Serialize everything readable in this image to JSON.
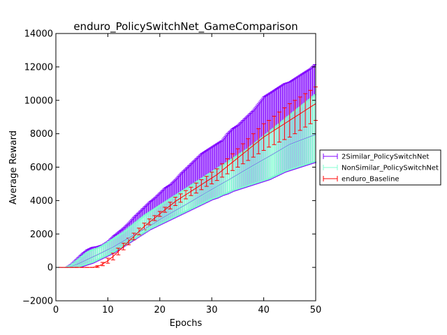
{
  "chart_data": {
    "type": "line",
    "title": "enduro_PolicySwitchNet_GameComparison",
    "xlabel": "Epochs",
    "ylabel": "Average Reward",
    "xlim": [
      0,
      50
    ],
    "ylim": [
      -2000,
      14000
    ],
    "xticks": [
      "0",
      "10",
      "20",
      "30",
      "40",
      "50"
    ],
    "yticks": [
      "−2000",
      "0",
      "2000",
      "4000",
      "6000",
      "8000",
      "10000",
      "12000",
      "14000"
    ],
    "grid": false,
    "legend_position": "outside-right",
    "x": [
      1,
      2,
      3,
      4,
      5,
      6,
      7,
      8,
      9,
      10,
      11,
      12,
      13,
      14,
      15,
      16,
      17,
      18,
      19,
      20,
      21,
      22,
      23,
      24,
      25,
      26,
      27,
      28,
      29,
      30,
      31,
      32,
      33,
      34,
      35,
      36,
      37,
      38,
      39,
      40,
      41,
      42,
      43,
      44,
      45,
      46,
      47,
      48,
      49,
      50
    ],
    "series": [
      {
        "name": "2Similar_PolicySwitchNet",
        "color": "#7f00ff",
        "values": [
          0,
          0,
          50,
          160,
          300,
          450,
          600,
          750,
          900,
          1050,
          1200,
          1380,
          1560,
          1740,
          1920,
          2100,
          2280,
          2460,
          2640,
          2850,
          3030,
          3210,
          3390,
          3570,
          3750,
          3930,
          4110,
          4290,
          4470,
          4650,
          4830,
          5010,
          5190,
          5370,
          5550,
          5730,
          5910,
          6090,
          6270,
          6450,
          6630,
          6810,
          6990,
          7170,
          7350,
          7470,
          7590,
          7710,
          7830,
          7950
        ],
        "lower": [
          0,
          0,
          0,
          0,
          50,
          150,
          250,
          400,
          550,
          700,
          850,
          1050,
          1250,
          1450,
          1650,
          1850,
          2050,
          2250,
          2400,
          2550,
          2700,
          2850,
          3000,
          3150,
          3300,
          3450,
          3600,
          3750,
          3900,
          4050,
          4150,
          4300,
          4400,
          4550,
          4650,
          4750,
          4850,
          4950,
          5050,
          5150,
          5250,
          5400,
          5550,
          5700,
          5800,
          5900,
          6000,
          6100,
          6200,
          6300
        ],
        "upper": [
          0,
          0,
          200,
          500,
          800,
          1050,
          1200,
          1250,
          1350,
          1550,
          1850,
          2100,
          2350,
          2650,
          3000,
          3300,
          3600,
          3900,
          4150,
          4450,
          4750,
          4950,
          5250,
          5600,
          5900,
          6200,
          6500,
          6800,
          7000,
          7200,
          7400,
          7600,
          8000,
          8300,
          8500,
          8800,
          9100,
          9400,
          9800,
          10200,
          10400,
          10600,
          10800,
          11000,
          11100,
          11300,
          11500,
          11700,
          11900,
          12200
        ]
      },
      {
        "name": "NonSimilar_PolicySwitchNet",
        "color": "#80ffd0",
        "values": [
          0,
          0,
          40,
          140,
          280,
          430,
          580,
          730,
          880,
          1030,
          1180,
          1360,
          1540,
          1720,
          1900,
          2080,
          2260,
          2440,
          2620,
          2830,
          3010,
          3190,
          3370,
          3550,
          3730,
          3910,
          4090,
          4270,
          4450,
          4630,
          4810,
          4990,
          5170,
          5350,
          5530,
          5710,
          5890,
          6070,
          6250,
          6430,
          6610,
          6790,
          6970,
          7150,
          7330,
          7450,
          7570,
          7690,
          7810,
          7930
        ],
        "lower": [
          0,
          0,
          0,
          0,
          100,
          200,
          300,
          450,
          600,
          750,
          900,
          1100,
          1300,
          1500,
          1700,
          1900,
          2100,
          2300,
          2450,
          2600,
          2750,
          2900,
          3050,
          3200,
          3350,
          3500,
          3650,
          3800,
          3950,
          4100,
          4200,
          4350,
          4450,
          4600,
          4700,
          4800,
          4900,
          5000,
          5100,
          5200,
          5300,
          5450,
          5600,
          5750,
          5850,
          5950,
          6050,
          6150,
          6250,
          6350
        ],
        "upper": [
          0,
          0,
          150,
          400,
          650,
          900,
          1050,
          1150,
          1300,
          1500,
          1700,
          1900,
          2100,
          2350,
          2600,
          2850,
          3100,
          3300,
          3500,
          3700,
          3900,
          4100,
          4300,
          4500,
          4700,
          4900,
          5100,
          5300,
          5500,
          5700,
          5900,
          6100,
          6300,
          6500,
          6700,
          6900,
          7100,
          7350,
          7600,
          7850,
          8100,
          8350,
          8600,
          8850,
          9100,
          9350,
          9600,
          9850,
          10100,
          10400
        ]
      },
      {
        "name": "enduro_Baseline",
        "color": "#ff0000",
        "values": [
          0,
          0,
          0,
          0,
          0,
          0,
          0,
          50,
          200,
          400,
          650,
          950,
          1250,
          1550,
          1850,
          2150,
          2450,
          2700,
          2950,
          3200,
          3450,
          3700,
          3950,
          4150,
          4350,
          4550,
          4750,
          4950,
          5150,
          5350,
          5550,
          5800,
          6050,
          6300,
          6550,
          6800,
          7050,
          7300,
          7550,
          7800,
          8000,
          8200,
          8400,
          8600,
          8800,
          9000,
          9200,
          9400,
          9600,
          9800
        ],
        "lower": [
          0,
          0,
          0,
          0,
          0,
          0,
          0,
          0,
          100,
          250,
          450,
          750,
          1050,
          1350,
          1650,
          1950,
          2250,
          2550,
          2800,
          3050,
          3300,
          3500,
          3700,
          3900,
          4100,
          4300,
          4450,
          4650,
          4850,
          5000,
          5200,
          5400,
          5600,
          5800,
          6000,
          6200,
          6400,
          6600,
          6800,
          7000,
          7200,
          7350,
          7500,
          7650,
          7800,
          8000,
          8200,
          8400,
          8600,
          8800
        ],
        "upper": [
          0,
          0,
          0,
          0,
          0,
          0,
          0,
          100,
          300,
          550,
          850,
          1150,
          1450,
          1750,
          2050,
          2350,
          2650,
          2900,
          3100,
          3350,
          3600,
          3900,
          4200,
          4400,
          4600,
          4800,
          5050,
          5250,
          5450,
          5700,
          5900,
          6200,
          6500,
          6800,
          7100,
          7400,
          7700,
          8000,
          8300,
          8600,
          8800,
          9050,
          9300,
          9550,
          9800,
          10000,
          10200,
          10400,
          10600,
          10800
        ]
      }
    ]
  }
}
